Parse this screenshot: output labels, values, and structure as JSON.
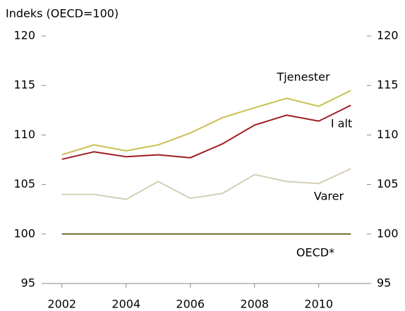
{
  "chart_data": {
    "type": "line",
    "title": "Indeks (OECD=100)",
    "x": [
      2002,
      2003,
      2004,
      2005,
      2006,
      2007,
      2008,
      2009,
      2010,
      2011
    ],
    "series": [
      {
        "name": "Tjenester",
        "color": "#c8c050",
        "values": [
          108.0,
          109.0,
          108.4,
          109.0,
          110.2,
          111.75,
          112.75,
          113.7,
          112.9,
          114.5
        ]
      },
      {
        "name": "I alt",
        "color": "#a01c24",
        "values": [
          107.55,
          108.3,
          107.8,
          108.0,
          107.7,
          109.1,
          111.0,
          112.0,
          111.4,
          113.0
        ]
      },
      {
        "name": "Varer",
        "color": "#d4cfb4",
        "values": [
          104.0,
          104.0,
          103.5,
          105.3,
          103.6,
          104.1,
          106.0,
          105.3,
          105.1,
          106.6
        ]
      },
      {
        "name": "OECD*",
        "color": "#6b6b2a",
        "values": [
          100,
          100,
          100,
          100,
          100,
          100,
          100,
          100,
          100,
          100
        ]
      }
    ],
    "xlim": [
      2001.5,
      2011.5
    ],
    "xticks": [
      2002,
      2004,
      2006,
      2008,
      2010
    ],
    "ylim": [
      95,
      120
    ],
    "yticks": [
      95,
      100,
      105,
      110,
      115,
      120
    ],
    "grid": false
  }
}
